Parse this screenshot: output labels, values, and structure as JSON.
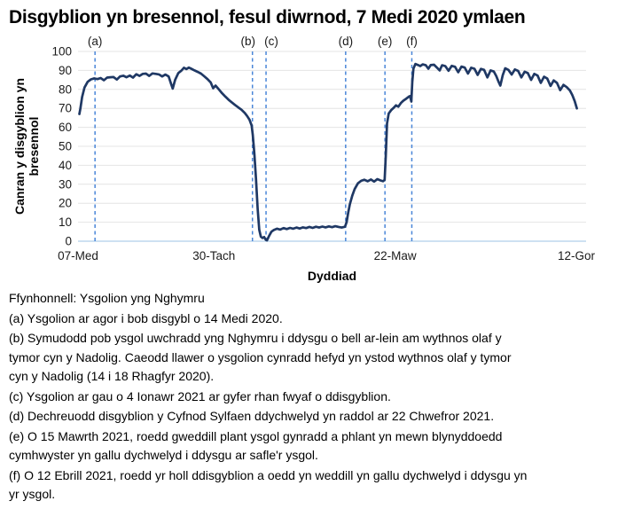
{
  "title": "Disgyblion yn bresennol, fesul diwrnod, 7 Medi 2020 ymlaen",
  "chart_data": {
    "type": "line",
    "title": "Disgyblion yn bresennol, fesul diwrnod, 7 Medi 2020 ymlaen",
    "xlabel": "Dyddiad",
    "ylabel": "Canran y disgyblion yn bresennol",
    "ylabel_lines": [
      "Canran y disgyblion yn",
      "bresennol"
    ],
    "ylim": [
      0,
      100
    ],
    "y_tick_step": 10,
    "grid": "horizontal",
    "legend": "none",
    "x_domain_days_from_2020_09_07": [
      0,
      314
    ],
    "x_domain": [
      0,
      314
    ],
    "x_ticks": [
      {
        "day": 0,
        "label": "07-Med"
      },
      {
        "day": 84,
        "label": "30-Tach"
      },
      {
        "day": 196,
        "label": "22-Maw"
      },
      {
        "day": 308,
        "label": "12-Gor"
      }
    ],
    "annotations": [
      {
        "label": "(a)",
        "day": 10.5,
        "dx": 0
      },
      {
        "label": "(b)",
        "day": 107.8,
        "dx": -5
      },
      {
        "label": "(c)",
        "day": 116.2,
        "dx": 6
      },
      {
        "label": "(d)",
        "day": 165.4,
        "dx": 0
      },
      {
        "label": "(e)",
        "day": 189.7,
        "dx": 0
      },
      {
        "label": "(f)",
        "day": 206.3,
        "dx": 0
      }
    ],
    "colors": {
      "line": "#1f3864",
      "annotation_line": "#4a86d8",
      "gridline": "#e4e4e4",
      "zero_axis": "#bdd7ee",
      "text": "#1a1a1a"
    },
    "series": [
      {
        "name": "Canran y disgyblion yn bresennol (%)",
        "points": [
          [
            0.8,
            67
          ],
          [
            1.5,
            70
          ],
          [
            2.5,
            76
          ],
          [
            4,
            81
          ],
          [
            6,
            84
          ],
          [
            8,
            85.3
          ],
          [
            10,
            85.8
          ],
          [
            12,
            85.4
          ],
          [
            14,
            86
          ],
          [
            16,
            84.8
          ],
          [
            18,
            86.2
          ],
          [
            20,
            86.4
          ],
          [
            22,
            86.5
          ],
          [
            24,
            85.2
          ],
          [
            26,
            86.8
          ],
          [
            28,
            87.2
          ],
          [
            30,
            86.4
          ],
          [
            32,
            87.3
          ],
          [
            34,
            86.2
          ],
          [
            36,
            88
          ],
          [
            38,
            87.1
          ],
          [
            40,
            88.2
          ],
          [
            42,
            88.3
          ],
          [
            44,
            87.1
          ],
          [
            46,
            88.4
          ],
          [
            48,
            88.2
          ],
          [
            50,
            87.9
          ],
          [
            52,
            86.8
          ],
          [
            54,
            87.8
          ],
          [
            56,
            86.8
          ],
          [
            57.5,
            83
          ],
          [
            58.5,
            80.4
          ],
          [
            60,
            85
          ],
          [
            62,
            88.6
          ],
          [
            64,
            90
          ],
          [
            65.5,
            91.4
          ],
          [
            67,
            90.7
          ],
          [
            68.5,
            91.5
          ],
          [
            70,
            90.9
          ],
          [
            72,
            90
          ],
          [
            74,
            89.2
          ],
          [
            76,
            88.3
          ],
          [
            78,
            86.9
          ],
          [
            80,
            85.4
          ],
          [
            82,
            83.7
          ],
          [
            83.5,
            80.6
          ],
          [
            85,
            82
          ],
          [
            87,
            80
          ],
          [
            89,
            78
          ],
          [
            91,
            76.2
          ],
          [
            93,
            74.6
          ],
          [
            95,
            73.2
          ],
          [
            97,
            71.8
          ],
          [
            99,
            70.5
          ],
          [
            101,
            69.3
          ],
          [
            103,
            67.6
          ],
          [
            104.5,
            66
          ],
          [
            106,
            64
          ],
          [
            107.3,
            61
          ],
          [
            108,
            56
          ],
          [
            109,
            46
          ],
          [
            110,
            33
          ],
          [
            111,
            17
          ],
          [
            112,
            6
          ],
          [
            113,
            2.4
          ],
          [
            114,
            1.7
          ],
          [
            115,
            2.2
          ],
          [
            116,
            0.8
          ],
          [
            116.8,
            0.4
          ],
          [
            118,
            2.6
          ],
          [
            119.5,
            5
          ],
          [
            121,
            5.9
          ],
          [
            123,
            6.6
          ],
          [
            125,
            6.1
          ],
          [
            127,
            6.9
          ],
          [
            129,
            6.4
          ],
          [
            131,
            7
          ],
          [
            133,
            6.6
          ],
          [
            135,
            7.2
          ],
          [
            137,
            6.7
          ],
          [
            139,
            7.3
          ],
          [
            141,
            6.9
          ],
          [
            143,
            7.5
          ],
          [
            145,
            7
          ],
          [
            147,
            7.6
          ],
          [
            149,
            7.2
          ],
          [
            151,
            7.7
          ],
          [
            153,
            7.3
          ],
          [
            155,
            7.8
          ],
          [
            157,
            7.4
          ],
          [
            159,
            7.9
          ],
          [
            161,
            7.5
          ],
          [
            163,
            7.2
          ],
          [
            165,
            7.6
          ],
          [
            166,
            10
          ],
          [
            167,
            15
          ],
          [
            168,
            19.5
          ],
          [
            169.5,
            24
          ],
          [
            171,
            27.5
          ],
          [
            173,
            30.5
          ],
          [
            175,
            31.8
          ],
          [
            177,
            32.4
          ],
          [
            179,
            31.6
          ],
          [
            181,
            32.5
          ],
          [
            183,
            31.4
          ],
          [
            185,
            32.7
          ],
          [
            187,
            32
          ],
          [
            188.5,
            31.6
          ],
          [
            189.5,
            32.3
          ],
          [
            190.2,
            45
          ],
          [
            191,
            62
          ],
          [
            192,
            67.3
          ],
          [
            193.5,
            69
          ],
          [
            195,
            70.2
          ],
          [
            196.5,
            71.6
          ],
          [
            198,
            70.9
          ],
          [
            199.5,
            72.8
          ],
          [
            201,
            74
          ],
          [
            203,
            75.2
          ],
          [
            204.5,
            76.2
          ],
          [
            205.2,
            76.5
          ],
          [
            206,
            73.6
          ],
          [
            206.6,
            84
          ],
          [
            207.3,
            91
          ],
          [
            208.5,
            93.4
          ],
          [
            210,
            92.9
          ],
          [
            211.5,
            92.3
          ],
          [
            213,
            93.2
          ],
          [
            215,
            92.7
          ],
          [
            216.5,
            90.9
          ],
          [
            218,
            92.8
          ],
          [
            220,
            93
          ],
          [
            222,
            91.3
          ],
          [
            223.5,
            90
          ],
          [
            225,
            92.7
          ],
          [
            227,
            92.3
          ],
          [
            229,
            89.8
          ],
          [
            231,
            92.4
          ],
          [
            233,
            91.9
          ],
          [
            235,
            89
          ],
          [
            237,
            92
          ],
          [
            239,
            91.5
          ],
          [
            241,
            88.3
          ],
          [
            243,
            91.4
          ],
          [
            245,
            90.9
          ],
          [
            247,
            87.6
          ],
          [
            249,
            90.8
          ],
          [
            251,
            90.3
          ],
          [
            253,
            86.3
          ],
          [
            255,
            90
          ],
          [
            257,
            89.4
          ],
          [
            258.5,
            87
          ],
          [
            260,
            83.8
          ],
          [
            261,
            82
          ],
          [
            262.5,
            87.5
          ],
          [
            264,
            91.1
          ],
          [
            266,
            90.3
          ],
          [
            268,
            87.8
          ],
          [
            270,
            90.5
          ],
          [
            272,
            89.7
          ],
          [
            274,
            86.3
          ],
          [
            276,
            89.3
          ],
          [
            278,
            88.6
          ],
          [
            280,
            85
          ],
          [
            282,
            88.2
          ],
          [
            284,
            87.3
          ],
          [
            286,
            83.4
          ],
          [
            288,
            86.7
          ],
          [
            290,
            85.7
          ],
          [
            292,
            81.8
          ],
          [
            294,
            84.7
          ],
          [
            296,
            83.4
          ],
          [
            298,
            79.6
          ],
          [
            300,
            82.4
          ],
          [
            302,
            81.2
          ],
          [
            304,
            79.4
          ],
          [
            305.5,
            77
          ],
          [
            307,
            73.8
          ],
          [
            308.3,
            70
          ]
        ]
      }
    ]
  },
  "footnotes": [
    "Ffynhonnell: Ysgolion yng Nghymru",
    "(a) Ysgolion ar agor i bob disgybl o 14 Medi 2020.",
    "(b) Symudodd pob ysgol uwchradd yng Nghymru i ddysgu o bell ar-lein am wythnos olaf y tymor cyn y Nadolig. Caeodd llawer o ysgolion cynradd hefyd yn ystod wythnos olaf y tymor cyn y Nadolig (14 i 18 Rhagfyr 2020).",
    "(c) Ysgolion ar gau o 4 Ionawr 2021 ar gyfer rhan fwyaf o ddisgyblion.",
    "(d) Dechreuodd disgyblion y Cyfnod Sylfaen ddychwelyd yn raddol ar 22 Chwefror 2021.",
    "(e) O 15 Mawrth 2021, roedd gweddill plant ysgol gynradd a phlant yn mewn blynyddoedd cymhwyster yn gallu dychwelyd i ddysgu ar safle'r ysgol.",
    "(f) O 12 Ebrill 2021, roedd yr holl ddisgyblion a oedd yn weddill yn gallu dychwelyd i ddysgu yn yr ysgol."
  ]
}
